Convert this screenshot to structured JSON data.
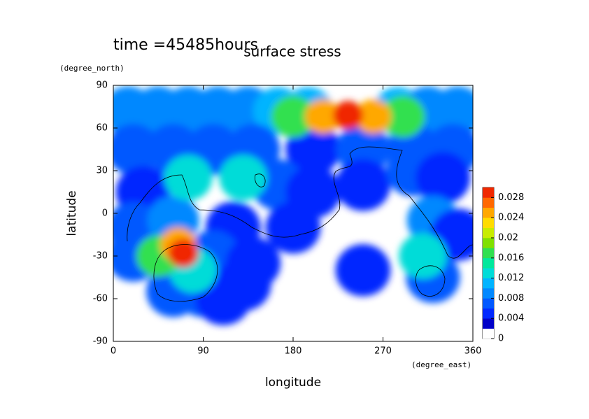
{
  "chart_data": {
    "type": "contour",
    "title": "surface stress",
    "annotation": "time =45485hours",
    "x_label": "longitude",
    "x_units": "(degree_east)",
    "y_label": "latitude",
    "y_units": "(degree_north)",
    "xlim": [
      0,
      360
    ],
    "xticks": [
      0,
      90,
      180,
      270,
      360
    ],
    "ylim": [
      -90,
      90
    ],
    "yticks": [
      -90,
      -60,
      -30,
      0,
      30,
      60,
      90
    ],
    "colorbar": {
      "lim": [
        0,
        0.03
      ],
      "ticks": [
        0,
        0.004,
        0.008,
        0.012,
        0.016,
        0.02,
        0.024,
        0.028
      ],
      "colors": [
        "#ffffff",
        "#0000c8",
        "#0028ff",
        "#0058ff",
        "#0088ff",
        "#00b4ff",
        "#00dcd8",
        "#00e89c",
        "#30e050",
        "#80e000",
        "#c8ec00",
        "#ffdc00",
        "#ffa800",
        "#ff6800",
        "#f02800"
      ]
    },
    "points": [
      {
        "lon": 15,
        "lat": 72,
        "value": 0.008
      },
      {
        "lon": 45,
        "lat": 72,
        "value": 0.008
      },
      {
        "lon": 75,
        "lat": 72,
        "value": 0.008
      },
      {
        "lon": 105,
        "lat": 72,
        "value": 0.008
      },
      {
        "lon": 135,
        "lat": 72,
        "value": 0.008
      },
      {
        "lon": 165,
        "lat": 72,
        "value": 0.01
      },
      {
        "lon": 195,
        "lat": 72,
        "value": 0.01
      },
      {
        "lon": 285,
        "lat": 72,
        "value": 0.01
      },
      {
        "lon": 315,
        "lat": 72,
        "value": 0.008
      },
      {
        "lon": 345,
        "lat": 72,
        "value": 0.008
      },
      {
        "lon": 20,
        "lat": 45,
        "value": 0.006
      },
      {
        "lon": 60,
        "lat": 45,
        "value": 0.006
      },
      {
        "lon": 100,
        "lat": 45,
        "value": 0.006
      },
      {
        "lon": 140,
        "lat": 45,
        "value": 0.006
      },
      {
        "lon": 200,
        "lat": 45,
        "value": 0.005
      },
      {
        "lon": 250,
        "lat": 45,
        "value": 0.006
      },
      {
        "lon": 300,
        "lat": 45,
        "value": 0.006
      },
      {
        "lon": 340,
        "lat": 45,
        "value": 0.006
      },
      {
        "lon": 30,
        "lat": 15,
        "value": 0.005
      },
      {
        "lon": 165,
        "lat": 20,
        "value": 0.006
      },
      {
        "lon": 200,
        "lat": 15,
        "value": 0.005
      },
      {
        "lon": 250,
        "lat": 20,
        "value": 0.005
      },
      {
        "lon": 300,
        "lat": 30,
        "value": 0.006
      },
      {
        "lon": 330,
        "lat": 25,
        "value": 0.005
      },
      {
        "lon": 20,
        "lat": -10,
        "value": 0.006
      },
      {
        "lon": 60,
        "lat": -5,
        "value": 0.008
      },
      {
        "lon": 120,
        "lat": -10,
        "value": 0.005
      },
      {
        "lon": 180,
        "lat": -10,
        "value": 0.005
      },
      {
        "lon": 320,
        "lat": -5,
        "value": 0.008
      },
      {
        "lon": 345,
        "lat": -15,
        "value": 0.005
      },
      {
        "lon": 20,
        "lat": -30,
        "value": 0.006
      },
      {
        "lon": 100,
        "lat": -30,
        "value": 0.006
      },
      {
        "lon": 140,
        "lat": -35,
        "value": 0.005
      },
      {
        "lon": 130,
        "lat": -50,
        "value": 0.004
      },
      {
        "lon": 250,
        "lat": -40,
        "value": 0.005
      },
      {
        "lon": 320,
        "lat": -45,
        "value": 0.006
      },
      {
        "lon": 60,
        "lat": -55,
        "value": 0.006
      },
      {
        "lon": 90,
        "lat": -55,
        "value": 0.006
      },
      {
        "lon": 110,
        "lat": -60,
        "value": 0.004
      },
      {
        "lon": 75,
        "lat": 25,
        "value": 0.012
      },
      {
        "lon": 130,
        "lat": 25,
        "value": 0.012
      },
      {
        "lon": 310,
        "lat": -30,
        "value": 0.012
      },
      {
        "lon": 80,
        "lat": -40,
        "value": 0.012
      },
      {
        "lon": 45,
        "lat": -30,
        "value": 0.016
      },
      {
        "lon": 180,
        "lat": 68,
        "value": 0.016
      },
      {
        "lon": 290,
        "lat": 68,
        "value": 0.016
      },
      {
        "lon": 210,
        "lat": 68,
        "value": 0.024
      },
      {
        "lon": 260,
        "lat": 68,
        "value": 0.024
      },
      {
        "lon": 65,
        "lat": -22,
        "value": 0.024
      },
      {
        "lon": 235,
        "lat": 69,
        "value": 0.03
      },
      {
        "lon": 70,
        "lat": -28,
        "value": 0.03
      }
    ]
  }
}
